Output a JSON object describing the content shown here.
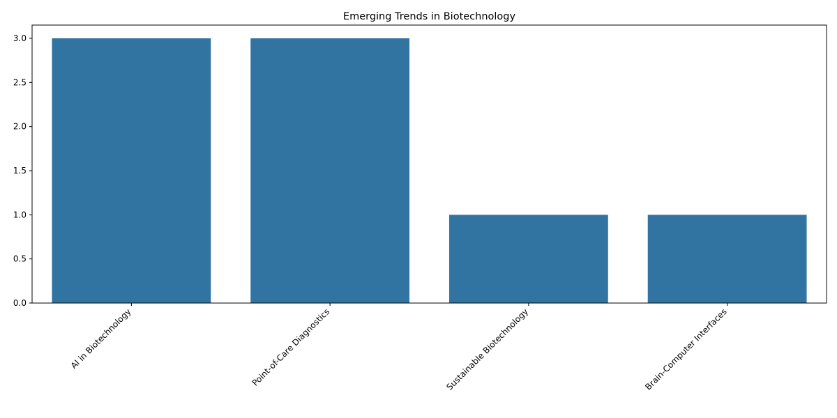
{
  "chart_data": {
    "type": "bar",
    "title": "Emerging Trends in Biotechnology",
    "xlabel": "",
    "ylabel": "",
    "categories": [
      "AI in Biotechnology",
      "Point-of-Care Diagnostics",
      "Sustainable Biotechnology",
      "Brain-Computer Interfaces"
    ],
    "values": [
      3,
      3,
      1,
      1
    ],
    "ylim": [
      0,
      3.15
    ],
    "yticks": [
      0.0,
      0.5,
      1.0,
      1.5,
      2.0,
      2.5,
      3.0
    ],
    "ytick_labels": [
      "0.0",
      "0.5",
      "1.0",
      "1.5",
      "2.0",
      "2.5",
      "3.0"
    ],
    "grid": false,
    "bar_color": "#3274a1"
  }
}
